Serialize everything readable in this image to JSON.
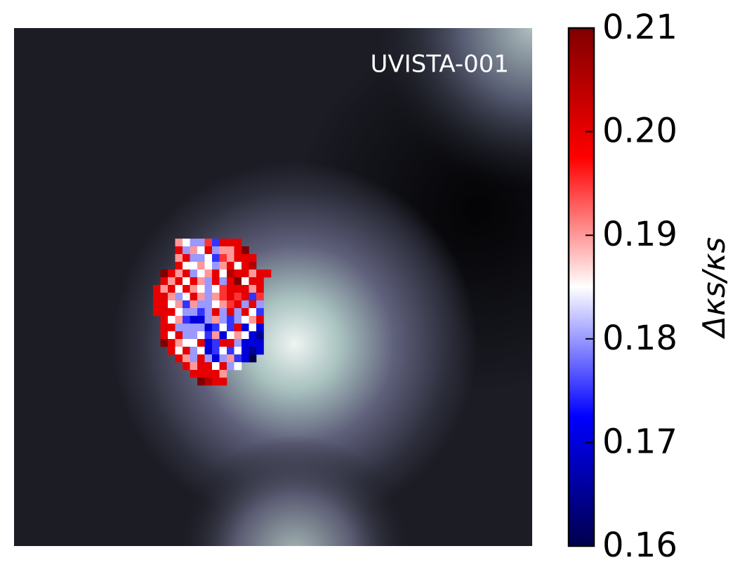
{
  "chart_data": {
    "type": "heatmap",
    "annotation": "UVISTA-001",
    "colorbar_label": "Δκs/κs",
    "colormap": "seismic",
    "clim": [
      0.16,
      0.21
    ],
    "cticks": [
      0.16,
      0.17,
      0.18,
      0.19,
      {
        "value": 0.2,
        "label": "0.20"
      },
      0.21
    ],
    "z": [
      [
        null,
        null,
        null,
        0.19,
        0.185,
        0.18,
        0.18,
        0.195,
        0.175,
        0.2,
        0.2,
        0.2,
        null,
        null,
        null,
        null
      ],
      [
        null,
        null,
        null,
        0.2,
        0.18,
        0.19,
        0.185,
        0.2,
        0.18,
        0.19,
        0.19,
        0.2,
        0.21,
        null,
        null,
        null
      ],
      [
        null,
        null,
        null,
        0.19,
        0.2,
        0.18,
        0.18,
        0.185,
        0.175,
        0.195,
        0.19,
        0.2,
        0.2,
        0.2,
        null,
        null
      ],
      [
        null,
        null,
        null,
        0.2,
        0.185,
        0.185,
        0.19,
        0.185,
        0.18,
        0.19,
        0.2,
        0.185,
        0.2,
        0.205,
        null,
        null
      ],
      [
        null,
        0.21,
        0.2,
        0.19,
        0.2,
        0.18,
        0.185,
        0.19,
        0.2,
        0.185,
        0.205,
        0.2,
        0.2,
        0.19,
        0.2,
        0.2
      ],
      [
        null,
        0.2,
        0.19,
        0.2,
        0.185,
        0.2,
        0.19,
        0.18,
        0.2,
        0.18,
        0.2,
        0.21,
        0.185,
        0.2,
        0.2,
        null
      ],
      [
        0.2,
        0.19,
        0.2,
        0.185,
        0.2,
        0.19,
        0.185,
        0.18,
        0.185,
        0.195,
        0.2,
        0.2,
        0.2,
        0.19,
        0.2,
        null
      ],
      [
        0.2,
        0.2,
        0.19,
        0.18,
        0.185,
        0.2,
        0.19,
        0.18,
        0.19,
        0.195,
        0.2,
        0.195,
        0.2,
        0.175,
        0.195,
        null
      ],
      [
        0.2,
        0.2,
        0.185,
        0.19,
        0.175,
        0.19,
        0.18,
        0.18,
        0.185,
        0.19,
        0.195,
        0.2,
        0.18,
        0.2,
        0.18,
        null
      ],
      [
        0.2,
        0.2,
        0.2,
        0.185,
        0.18,
        0.18,
        0.175,
        0.18,
        0.2,
        0.18,
        0.2,
        0.18,
        0.2,
        0.185,
        0.175,
        null
      ],
      [
        null,
        0.2,
        0.185,
        0.19,
        0.175,
        0.17,
        0.17,
        0.18,
        0.19,
        0.18,
        0.175,
        0.18,
        0.185,
        0.19,
        0.2,
        null
      ],
      [
        null,
        0.2,
        0.2,
        0.18,
        0.18,
        0.18,
        0.18,
        0.17,
        0.175,
        0.185,
        0.175,
        0.2,
        0.17,
        0.185,
        0.17,
        null
      ],
      [
        null,
        0.2,
        0.185,
        0.2,
        0.18,
        0.18,
        0.185,
        0.175,
        0.19,
        0.17,
        0.185,
        0.19,
        0.185,
        0.17,
        0.165,
        null
      ],
      [
        null,
        0.21,
        0.2,
        0.19,
        0.185,
        0.185,
        0.2,
        0.17,
        0.175,
        0.2,
        0.2,
        0.18,
        0.17,
        0.17,
        0.17,
        null
      ],
      [
        null,
        null,
        0.2,
        0.185,
        0.2,
        0.18,
        0.185,
        0.17,
        0.175,
        0.185,
        0.175,
        0.185,
        0.17,
        0.165,
        0.17,
        null
      ],
      [
        null,
        null,
        null,
        0.2,
        0.19,
        0.18,
        0.2,
        0.18,
        0.17,
        0.18,
        0.19,
        0.175,
        0.17,
        0.16,
        null,
        null
      ],
      [
        null,
        null,
        null,
        null,
        0.2,
        0.19,
        0.2,
        0.2,
        0.185,
        0.2,
        0.18,
        0.185,
        null,
        null,
        null,
        null
      ],
      [
        null,
        null,
        null,
        null,
        null,
        0.2,
        0.2,
        0.2,
        0.2,
        0.19,
        null,
        null,
        null,
        null,
        null,
        null
      ],
      [
        null,
        null,
        null,
        null,
        null,
        null,
        0.21,
        0.205,
        0.2,
        0.2,
        null,
        null,
        null,
        null,
        null,
        null
      ]
    ]
  }
}
